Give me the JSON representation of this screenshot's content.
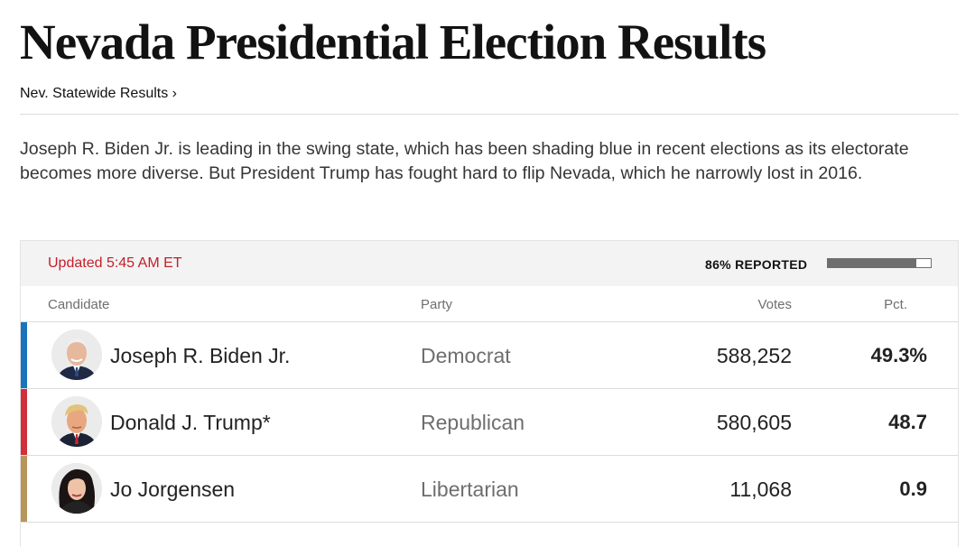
{
  "page": {
    "title": "Nevada Presidential Election Results",
    "breadcrumb": "Nev. Statewide Results ›",
    "summary": "Joseph R. Biden Jr. is leading in the swing state, which has been shading blue in recent elections as its electorate becomes more diverse. But President Trump has fought hard to flip Nevada, which he narrowly lost in 2016."
  },
  "results": {
    "updated": "Updated 5:45 AM ET",
    "reported_label": "86% REPORTED",
    "reported_fraction": 0.86,
    "columns": {
      "candidate": "Candidate",
      "party": "Party",
      "votes": "Votes",
      "pct": "Pct."
    },
    "candidates": [
      {
        "name": "Joseph R. Biden Jr.",
        "party": "Democrat",
        "votes": "588,252",
        "pct": "49.3%",
        "party_color": "#1a73bd",
        "avatar_icon": "biden-portrait"
      },
      {
        "name": "Donald J. Trump*",
        "party": "Republican",
        "votes": "580,605",
        "pct": "48.7",
        "party_color": "#d0303a",
        "avatar_icon": "trump-portrait"
      },
      {
        "name": "Jo Jorgensen",
        "party": "Libertarian",
        "votes": "11,068",
        "pct": "0.9",
        "party_color": "#b8965a",
        "avatar_icon": "jorgensen-portrait"
      }
    ]
  }
}
